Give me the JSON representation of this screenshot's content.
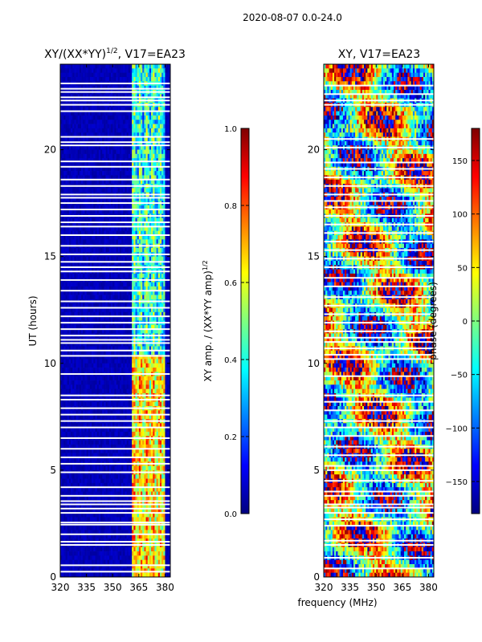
{
  "suptitle": "2020-08-07 0.0-24.0",
  "xlabel": "frequency (MHz)",
  "colors": {
    "jet_stops": [
      "#00007f",
      "#0000ff",
      "#0080ff",
      "#00ffff",
      "#7fff7f",
      "#ffff00",
      "#ff8000",
      "#ff0000",
      "#7f0000"
    ],
    "gap_color": "#ffffff"
  },
  "chart_data": [
    {
      "type": "heatmap",
      "title_main": "XY/(XX*YY)",
      "title_sup": "1/2",
      "title_tail": ", V17=EA23",
      "xlabel": "",
      "ylabel": "UT (hours)",
      "xlim": [
        320,
        383
      ],
      "ylim": [
        0,
        24
      ],
      "xticks": [
        320,
        335,
        350,
        365,
        380
      ],
      "yticks": [
        0,
        5,
        10,
        15,
        20
      ],
      "colorbar": {
        "label_main": "XY amp. / (XX*YY amp)",
        "label_sup": "1/2",
        "range": [
          0.0,
          1.0
        ],
        "ticks": [
          "0.0",
          "0.2",
          "0.4",
          "0.6",
          "0.8",
          "1.0"
        ]
      },
      "description_values": {
        "low_band_mhz": [
          320,
          361
        ],
        "low_band_level": 0.03,
        "high_band_mhz": [
          361,
          380
        ],
        "high_band_level_early_ut": 0.65,
        "high_band_level_late_ut": 0.4
      },
      "gaps_ut_hours": [
        0.25,
        0.55,
        1.5,
        1.65,
        2.0,
        2.45,
        2.55,
        3.0,
        3.2,
        3.4,
        3.55,
        3.8,
        4.2,
        4.9,
        5.3,
        5.6,
        6.0,
        6.5,
        7.0,
        7.3,
        7.6,
        7.9,
        8.3,
        8.5,
        9.5,
        10.35,
        10.6,
        10.95,
        11.1,
        11.3,
        11.6,
        11.9,
        12.2,
        12.6,
        12.9,
        13.4,
        13.9,
        14.3,
        14.5,
        14.75,
        15.1,
        15.5,
        16.0,
        16.4,
        16.6,
        16.9,
        17.2,
        17.5,
        17.75,
        17.9,
        18.3,
        18.6,
        19.2,
        19.45,
        20.2,
        20.35,
        20.6,
        21.8,
        22.1,
        22.3,
        22.45,
        22.7,
        22.85,
        23.1
      ]
    },
    {
      "type": "heatmap",
      "title_main": "XY, V17=EA23",
      "title_sup": "",
      "title_tail": "",
      "xlabel": "",
      "ylabel": "",
      "xlim": [
        320,
        383
      ],
      "ylim": [
        0,
        24
      ],
      "xticks": [
        320,
        335,
        350,
        365,
        380
      ],
      "yticks": [
        0,
        5,
        10,
        15,
        20
      ],
      "colorbar": {
        "label_main": "phase (degrees)",
        "label_sup": "",
        "range": [
          -180,
          180
        ],
        "ticks": [
          "−150",
          "−100",
          "−50",
          "0",
          "50",
          "100",
          "150"
        ]
      },
      "gaps_ut_hours": [
        0.4,
        0.9,
        1.5,
        1.7,
        2.4,
        2.7,
        3.0,
        3.25,
        3.4,
        3.8,
        4.0,
        4.5,
        5.0,
        5.2,
        5.7,
        6.1,
        6.6,
        7.0,
        7.3,
        7.8,
        8.2,
        8.5,
        9.4,
        10.2,
        10.4,
        10.7,
        11.0,
        11.2,
        11.5,
        11.9,
        12.3,
        12.7,
        13.1,
        13.6,
        14.0,
        14.5,
        14.9,
        15.3,
        15.7,
        16.1,
        16.5,
        16.9,
        17.3,
        17.6,
        17.9,
        18.3,
        18.7,
        19.1,
        19.4,
        20.1,
        20.5,
        22.1,
        22.3,
        22.6,
        23.0
      ]
    }
  ]
}
